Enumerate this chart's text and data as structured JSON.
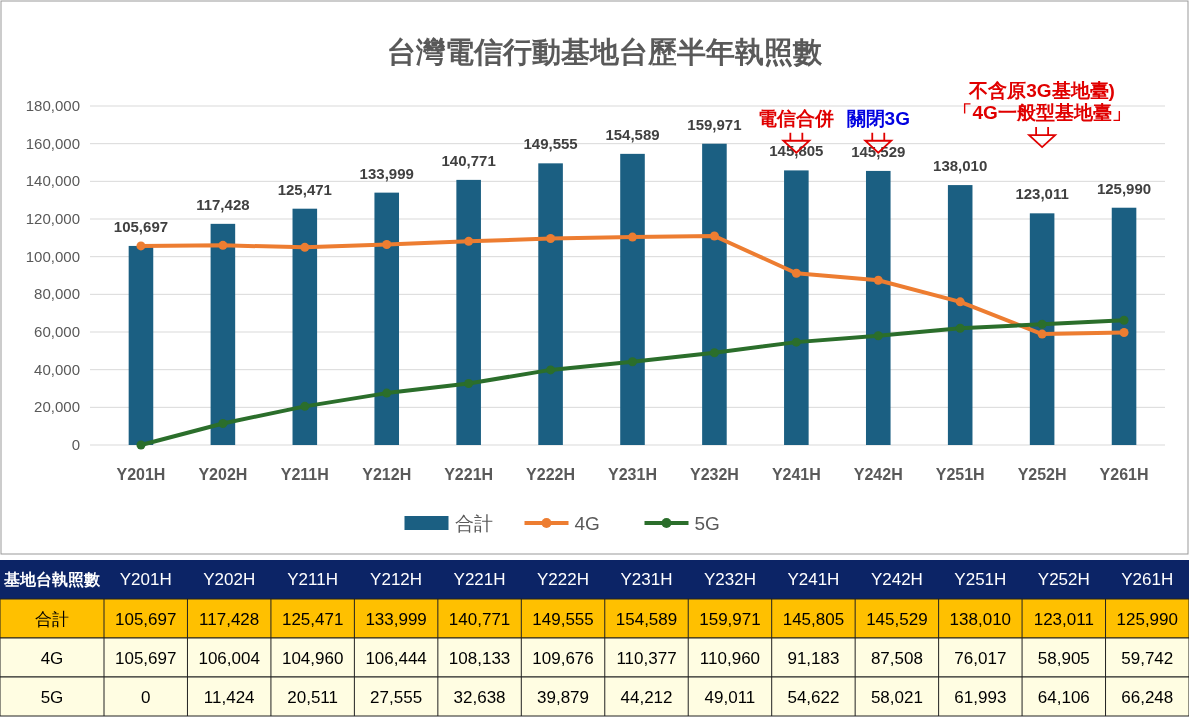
{
  "chart_data": {
    "type": "bar",
    "title": "台灣電信行動基地台歷半年執照數",
    "categories": [
      "Y201H",
      "Y202H",
      "Y211H",
      "Y212H",
      "Y221H",
      "Y222H",
      "Y231H",
      "Y232H",
      "Y241H",
      "Y242H",
      "Y251H",
      "Y252H",
      "Y261H"
    ],
    "series": [
      {
        "name": "合計",
        "color": "#1b5f82",
        "values": [
          105697,
          117428,
          125471,
          133999,
          140771,
          149555,
          154589,
          159971,
          145805,
          145529,
          138010,
          123011,
          125990
        ],
        "value_labels": [
          "105,697",
          "117,428",
          "125,471",
          "133,999",
          "140,771",
          "149,555",
          "154,589",
          "159,971",
          "145,805",
          "145,529",
          "138,010",
          "123,011",
          "125,990"
        ]
      },
      {
        "name": "4G",
        "type": "line",
        "color": "#ed7d31",
        "values": [
          105697,
          106004,
          104960,
          106444,
          108133,
          109676,
          110377,
          110960,
          91183,
          87508,
          76017,
          58905,
          59742
        ],
        "value_labels": [
          "105,697",
          "106,004",
          "104,960",
          "106,444",
          "108,133",
          "109,676",
          "110,377",
          "110,960",
          "91,183",
          "87,508",
          "76,017",
          "58,905",
          "59,742"
        ]
      },
      {
        "name": "5G",
        "type": "line",
        "color": "#2b6e2b",
        "values": [
          0,
          11424,
          20511,
          27555,
          32638,
          39879,
          44212,
          49011,
          54622,
          58021,
          61993,
          64106,
          66248
        ],
        "value_labels": [
          "0",
          "11,424",
          "20,511",
          "27,555",
          "32,638",
          "39,879",
          "44,212",
          "49,011",
          "54,622",
          "58,021",
          "61,993",
          "64,106",
          "66,248"
        ]
      }
    ],
    "ylim": [
      0,
      180000
    ],
    "yticks": [
      {
        "value": 0,
        "label": "0"
      },
      {
        "value": 20000,
        "label": "20,000"
      },
      {
        "value": 40000,
        "label": "40,000"
      },
      {
        "value": 60000,
        "label": "60,000"
      },
      {
        "value": 80000,
        "label": "80,000"
      },
      {
        "value": 100000,
        "label": "100,000"
      },
      {
        "value": 120000,
        "label": "120,000"
      },
      {
        "value": 140000,
        "label": "140,000"
      },
      {
        "value": 160000,
        "label": "160,000"
      },
      {
        "value": 180000,
        "label": "180,000"
      }
    ],
    "grid": "y",
    "legend": "bottom",
    "marker": "circle",
    "annotations": [
      "電信合併",
      "關閉3G",
      "不含原3G基地臺)\n「4G一般型基地臺」",
      "基地台執照數"
    ]
  }
}
